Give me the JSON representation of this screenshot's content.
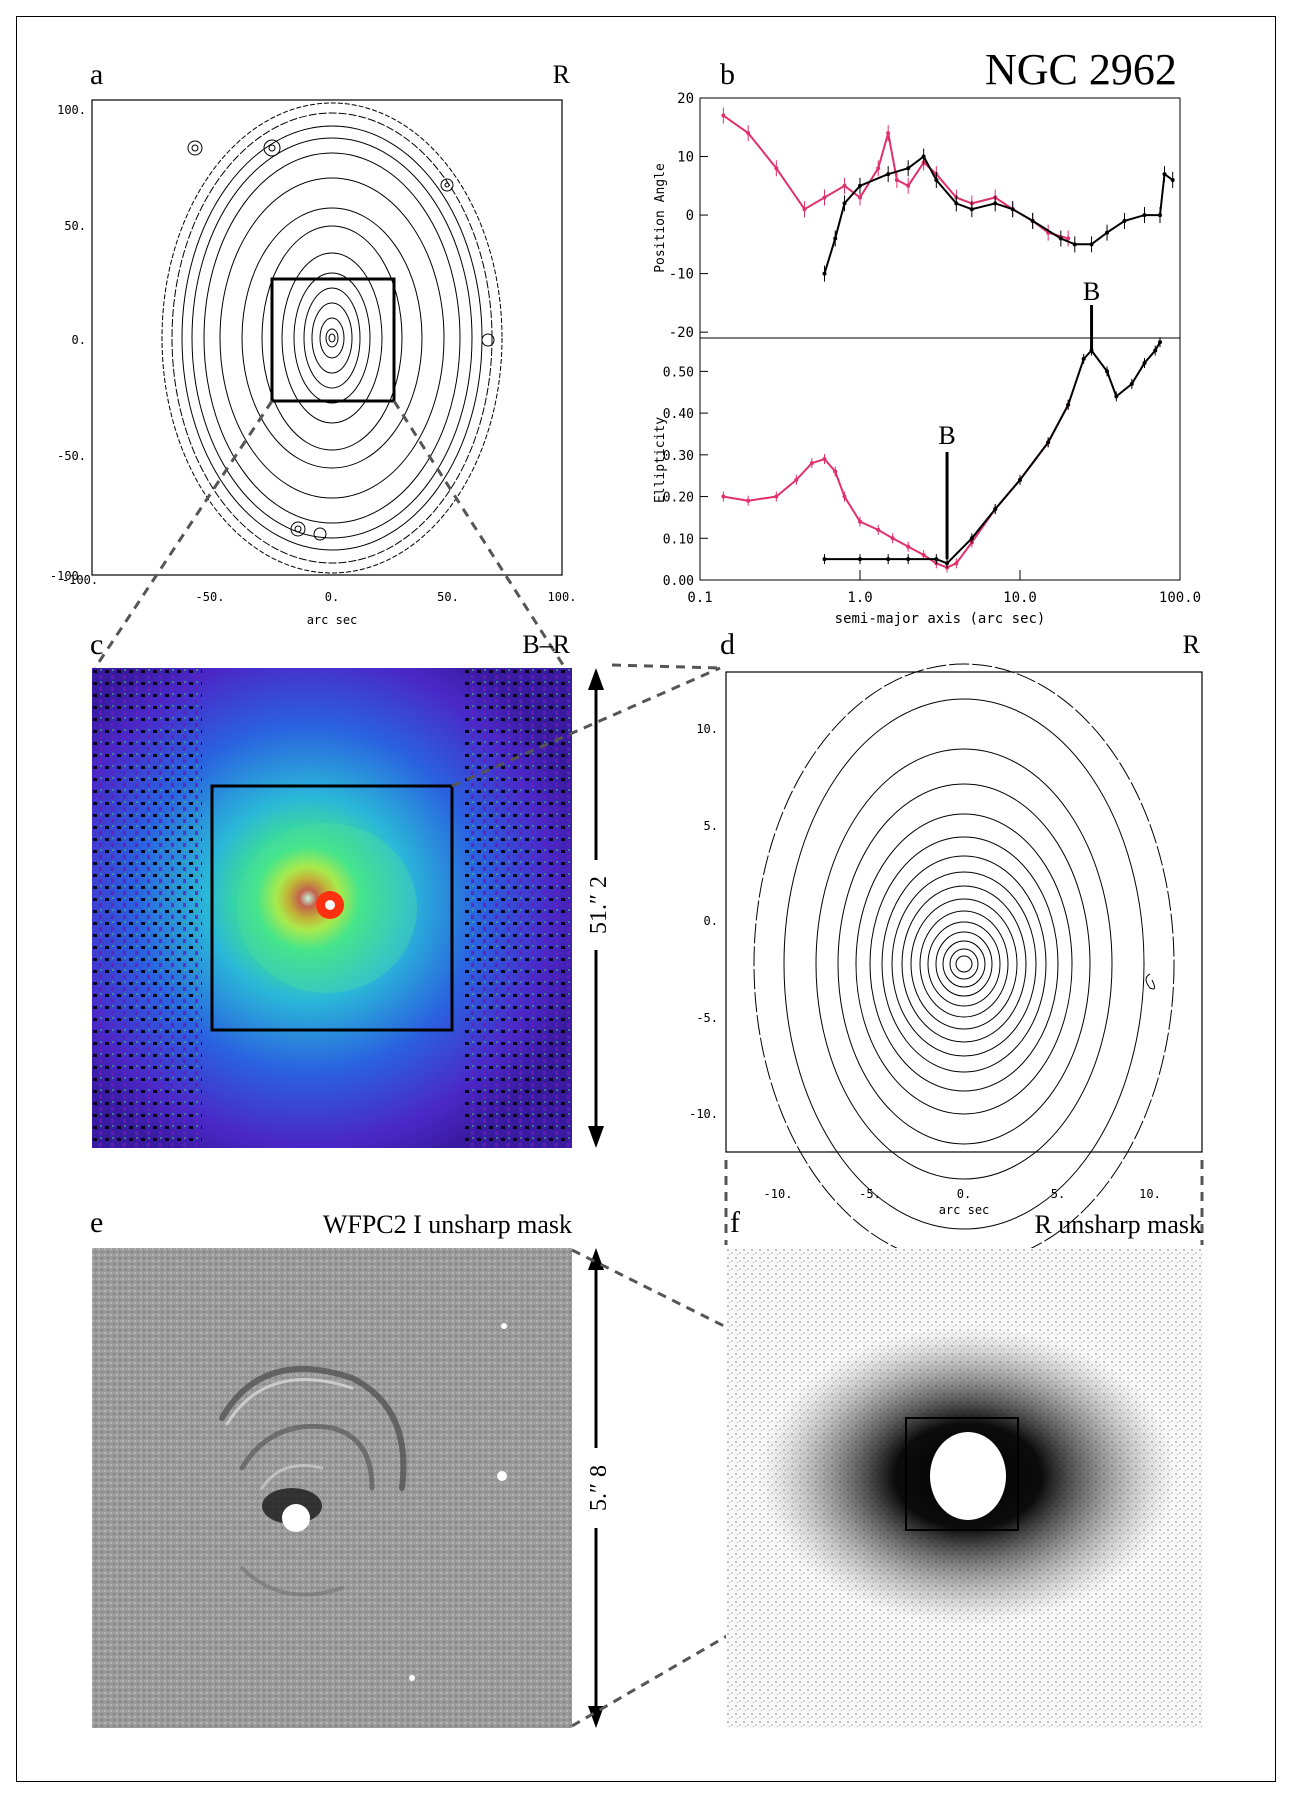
{
  "figure": {
    "object": "NGC 2962",
    "panels": {
      "a": {
        "letter": "a",
        "band": "R",
        "xlabel": "arc sec",
        "xticks": [
          "-100.",
          "-50.",
          "0.",
          "50.",
          "100."
        ],
        "yticks": [
          "100.",
          "50.",
          "0.",
          "-50.",
          "-100."
        ]
      },
      "b": {
        "letter": "b",
        "ylabel_top": "Position Angle",
        "ylabel_bottom": "Ellipticity",
        "xlabel": "semi-major axis (arc sec)",
        "xticks": [
          "0.1",
          "1.0",
          "10.0",
          "100.0"
        ],
        "pa_ticks": [
          "20",
          "10",
          "0",
          "-10",
          "-20"
        ],
        "ell_ticks": [
          "0.50",
          "0.40",
          "0.30",
          "0.20",
          "0.10",
          "0.00"
        ],
        "marker_top": "B",
        "marker_bottom": "B"
      },
      "c": {
        "letter": "c",
        "band": "B–R",
        "scale": "51.″ 2"
      },
      "d": {
        "letter": "d",
        "band": "R",
        "xlabel": "arc sec",
        "xticks": [
          "-10.",
          "-5.",
          "0.",
          "5.",
          "10."
        ],
        "yticks": [
          "10.",
          "5.",
          "0.",
          "-5.",
          "-10."
        ]
      },
      "e": {
        "letter": "e",
        "band": "WFPC2 I unsharp mask",
        "scale": "5.″ 8"
      },
      "f": {
        "letter": "f",
        "band": "R unsharp mask"
      }
    }
  },
  "chart_data": [
    {
      "type": "line",
      "title": "Position Angle",
      "xlabel": "semi-major axis (arc sec)",
      "ylabel": "Position Angle",
      "xscale": "log",
      "xlim": [
        0.1,
        100
      ],
      "ylim": [
        -21,
        20
      ],
      "series": [
        {
          "name": "magenta",
          "x": [
            0.14,
            0.2,
            0.3,
            0.45,
            0.6,
            0.8,
            1.0,
            1.3,
            1.5,
            1.7,
            2.0,
            2.5,
            3.0,
            4.0,
            5.0,
            7.0,
            9.0,
            12.0,
            15.0,
            20.0
          ],
          "y": [
            17,
            14,
            8,
            1,
            3,
            5,
            3,
            8,
            14,
            6,
            5,
            9,
            7,
            3,
            2,
            3,
            1,
            -1,
            -3,
            -4
          ]
        },
        {
          "name": "black",
          "x": [
            0.6,
            0.7,
            0.8,
            1.0,
            1.5,
            2.0,
            2.5,
            3.0,
            4.0,
            5.0,
            7.0,
            9.0,
            12.0,
            18.0,
            22.0,
            28.0,
            35.0,
            45.0,
            60.0,
            75.0,
            80.0,
            90.0
          ],
          "y": [
            -10,
            -4,
            2,
            5,
            7,
            8,
            10,
            6,
            2,
            1,
            2,
            1,
            -1,
            -4,
            -5,
            -5,
            -3,
            -1,
            0,
            0,
            7,
            6
          ]
        }
      ]
    },
    {
      "type": "line",
      "title": "Ellipticity",
      "xlabel": "semi-major axis (arc sec)",
      "ylabel": "Ellipticity",
      "xscale": "log",
      "xlim": [
        0.1,
        100
      ],
      "ylim": [
        0,
        0.58
      ],
      "series": [
        {
          "name": "magenta",
          "x": [
            0.14,
            0.2,
            0.3,
            0.4,
            0.5,
            0.6,
            0.7,
            0.8,
            1.0,
            1.3,
            1.6,
            2.0,
            2.5,
            3.0,
            3.5,
            4.0,
            5.0,
            7.0,
            10.0,
            15.0,
            20.0
          ],
          "y": [
            0.2,
            0.19,
            0.2,
            0.24,
            0.28,
            0.29,
            0.26,
            0.2,
            0.14,
            0.12,
            0.1,
            0.08,
            0.06,
            0.04,
            0.03,
            0.04,
            0.09,
            0.17,
            0.24,
            0.33,
            0.42
          ]
        },
        {
          "name": "black",
          "x": [
            0.6,
            1.0,
            1.5,
            2.0,
            3.0,
            3.5,
            5.0,
            7.0,
            10.0,
            15.0,
            20.0,
            25.0,
            28.0,
            35.0,
            40.0,
            50.0,
            60.0,
            70.0,
            75.0
          ],
          "y": [
            0.05,
            0.05,
            0.05,
            0.05,
            0.05,
            0.04,
            0.1,
            0.17,
            0.24,
            0.33,
            0.42,
            0.53,
            0.55,
            0.5,
            0.44,
            0.47,
            0.52,
            0.55,
            0.57
          ]
        }
      ],
      "annotations": [
        {
          "text": "B",
          "x": 3.5
        },
        {
          "text": "B",
          "x": 28
        }
      ]
    }
  ]
}
